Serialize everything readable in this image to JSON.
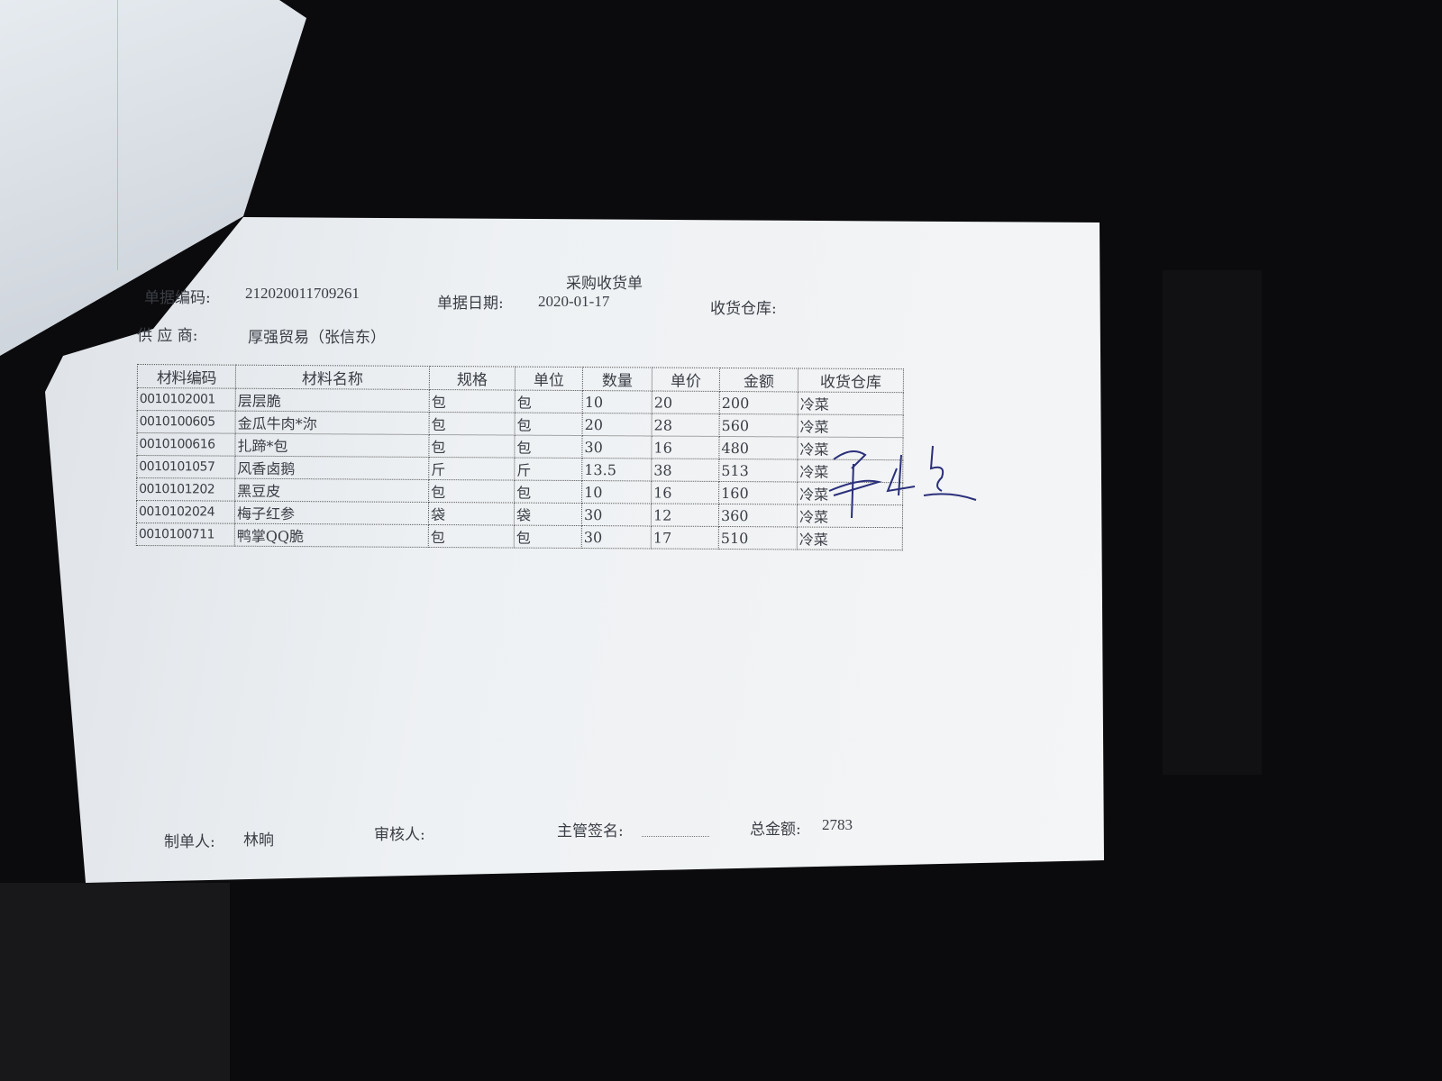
{
  "document": {
    "title": "采购收货单",
    "doc_no_label": "单据编码:",
    "doc_no": "212020011709261",
    "date_label": "单据日期:",
    "date": "2020-01-17",
    "warehouse_label": "收货仓库:",
    "supplier_label": "供 应 商:",
    "supplier": "厚强贸易（张信东）",
    "columns": [
      "材料编码",
      "材料名称",
      "规格",
      "单位",
      "数量",
      "单价",
      "金额",
      "收货仓库"
    ],
    "rows": [
      [
        "0010102001",
        "层层脆",
        "包",
        "包",
        "10",
        "20",
        "200",
        "冷菜"
      ],
      [
        "0010100605",
        "金瓜牛肉*沵",
        "包",
        "包",
        "20",
        "28",
        "560",
        "冷菜"
      ],
      [
        "0010100616",
        "扎蹄*包",
        "包",
        "包",
        "30",
        "16",
        "480",
        "冷菜"
      ],
      [
        "0010101057",
        "风香卤鹅",
        "斤",
        "斤",
        "13.5",
        "38",
        "513",
        "冷菜"
      ],
      [
        "0010101202",
        "黑豆皮",
        "包",
        "包",
        "10",
        "16",
        "160",
        "冷菜"
      ],
      [
        "0010102024",
        "梅子红参",
        "袋",
        "袋",
        "30",
        "12",
        "360",
        "冷菜"
      ],
      [
        "0010100711",
        "鸭掌QQ脆",
        "包",
        "包",
        "30",
        "17",
        "510",
        "冷菜"
      ]
    ],
    "maker_label": "制单人:",
    "maker": "林晌",
    "reviewer_label": "审核人:",
    "supervisor_label": "主管签名:",
    "total_label": "总金额:",
    "total": "2783",
    "signature_text": "华应忠",
    "ink_color": "#2a2f7a"
  }
}
